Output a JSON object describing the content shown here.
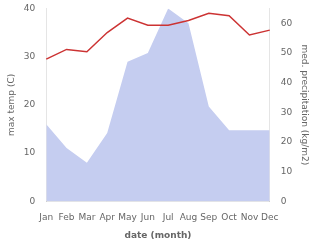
{
  "chart_data": {
    "type": "line",
    "xlabel": "date (month)",
    "ylabel": "max temp (C)",
    "y2label": "med. precipitation (kg/m2)",
    "categories": [
      "Jan",
      "Feb",
      "Mar",
      "Apr",
      "May",
      "Jun",
      "Jul",
      "Aug",
      "Sep",
      "Oct",
      "Nov",
      "Dec"
    ],
    "series": [
      {
        "type": "area",
        "color": "#c5cdf0",
        "axis": "y2",
        "values": [
          26,
          18,
          13,
          23,
          47,
          50,
          65,
          60,
          32,
          24,
          24,
          24
        ]
      },
      {
        "type": "line",
        "color": "#cc3333",
        "values": [
          29.5,
          31.5,
          31.0,
          35.0,
          38.0,
          36.5,
          36.5,
          37.5,
          39.0,
          38.5,
          34.5,
          35.5
        ]
      }
    ],
    "ylim": [
      0,
      40
    ],
    "yticks": [
      0,
      10,
      20,
      30,
      40
    ],
    "y2lim": [
      0,
      65
    ],
    "y2ticks": [
      0,
      10,
      20,
      30,
      40,
      50,
      60
    ],
    "grid": false
  }
}
